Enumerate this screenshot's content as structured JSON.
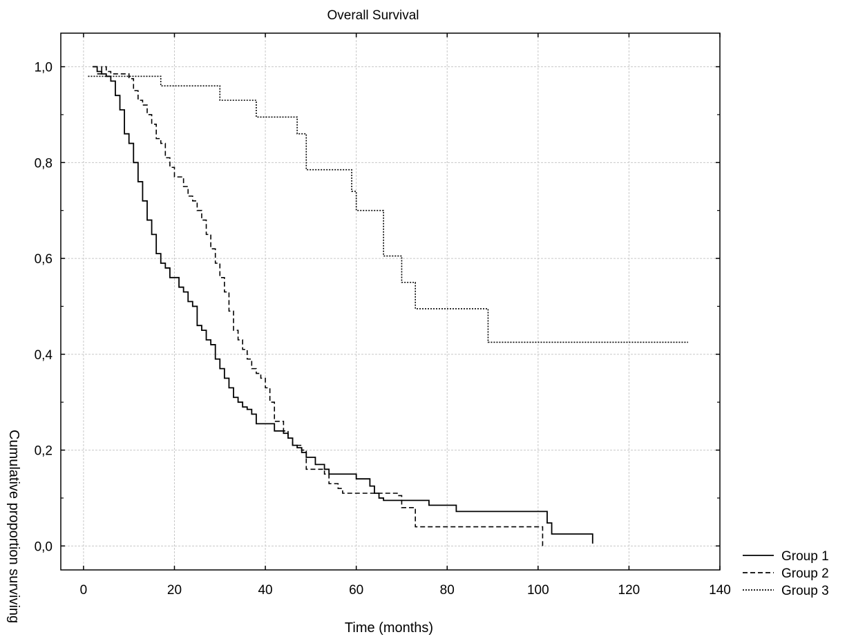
{
  "chart_data": {
    "type": "line",
    "title": "Overall Survival",
    "xlabel": "Time (months)",
    "ylabel": "Cumulative proportion surviving",
    "xlim": [
      -5,
      140
    ],
    "ylim": [
      -0.05,
      1.07
    ],
    "xticks": [
      0,
      20,
      40,
      60,
      80,
      100,
      120,
      140
    ],
    "xtick_labels": [
      "0",
      "20",
      "40",
      "60",
      "80",
      "100",
      "120",
      "140"
    ],
    "yticks": [
      0.0,
      0.2,
      0.4,
      0.6,
      0.8,
      1.0
    ],
    "ytick_labels": [
      "0,0",
      "0,2",
      "0,4",
      "0,6",
      "0,8",
      "1,0"
    ],
    "grid": true,
    "legend_position": "bottom-right, outside plot",
    "series": [
      {
        "name": "Group 1",
        "dash": "solid",
        "x": [
          2,
          3,
          4,
          5,
          6,
          7,
          8,
          9,
          10,
          11,
          12,
          13,
          14,
          15,
          16,
          17,
          18,
          19,
          20,
          21,
          22,
          23,
          24,
          25,
          26,
          27,
          28,
          29,
          30,
          31,
          32,
          33,
          34,
          35,
          36,
          37,
          38,
          40,
          42,
          44,
          45,
          46,
          47,
          48,
          49,
          51,
          53,
          54,
          60,
          63,
          64,
          65,
          66,
          70,
          76,
          82,
          101,
          102,
          103,
          112,
          112
        ],
        "y": [
          1.0,
          0.99,
          0.985,
          0.98,
          0.97,
          0.94,
          0.91,
          0.86,
          0.84,
          0.8,
          0.76,
          0.72,
          0.68,
          0.65,
          0.61,
          0.59,
          0.58,
          0.56,
          0.56,
          0.54,
          0.53,
          0.51,
          0.5,
          0.46,
          0.45,
          0.43,
          0.42,
          0.39,
          0.37,
          0.35,
          0.33,
          0.31,
          0.3,
          0.29,
          0.285,
          0.275,
          0.255,
          0.255,
          0.24,
          0.235,
          0.225,
          0.21,
          0.205,
          0.195,
          0.185,
          0.17,
          0.16,
          0.15,
          0.14,
          0.125,
          0.11,
          0.1,
          0.095,
          0.095,
          0.085,
          0.072,
          0.072,
          0.048,
          0.025,
          0.025,
          0.005
        ]
      },
      {
        "name": "Group 2",
        "dash": "dashed",
        "x": [
          3,
          4,
          5,
          6,
          10,
          11,
          12,
          13,
          14,
          15,
          16,
          17,
          18,
          19,
          20,
          21,
          22,
          23,
          24,
          25,
          26,
          27,
          28,
          29,
          30,
          31,
          32,
          33,
          34,
          35,
          36,
          37,
          38,
          39,
          40,
          41,
          42,
          43,
          44,
          45,
          46,
          48,
          49,
          50,
          51,
          53,
          54,
          56,
          57,
          59,
          62,
          66,
          69,
          70,
          73,
          101,
          101
        ],
        "y": [
          0.985,
          1.0,
          0.99,
          0.985,
          0.975,
          0.95,
          0.93,
          0.92,
          0.9,
          0.88,
          0.85,
          0.84,
          0.81,
          0.79,
          0.77,
          0.77,
          0.75,
          0.73,
          0.72,
          0.7,
          0.68,
          0.65,
          0.62,
          0.59,
          0.56,
          0.53,
          0.49,
          0.45,
          0.43,
          0.41,
          0.39,
          0.37,
          0.36,
          0.35,
          0.33,
          0.3,
          0.26,
          0.26,
          0.24,
          0.225,
          0.21,
          0.2,
          0.16,
          0.16,
          0.16,
          0.15,
          0.13,
          0.12,
          0.11,
          0.11,
          0.11,
          0.11,
          0.105,
          0.08,
          0.04,
          0.04,
          0.0
        ]
      },
      {
        "name": "Group 3",
        "dash": "dotted",
        "x": [
          1,
          17,
          30,
          38,
          47,
          49,
          59,
          60,
          66,
          70,
          73,
          89,
          133
        ],
        "y": [
          0.98,
          0.96,
          0.93,
          0.895,
          0.86,
          0.785,
          0.74,
          0.7,
          0.605,
          0.55,
          0.495,
          0.425,
          0.425
        ]
      }
    ]
  }
}
